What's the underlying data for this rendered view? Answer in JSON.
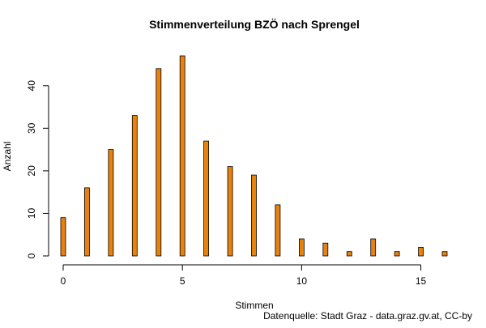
{
  "chart_data": {
    "type": "bar",
    "title": "Stimmenverteilung BZÖ nach Sprengel",
    "xlabel": "Stimmen",
    "ylabel": "Anzahl",
    "caption": "Datenquelle: Stadt Graz - data.graz.gv.at, CC-by",
    "x": [
      0,
      1,
      2,
      3,
      4,
      5,
      6,
      7,
      8,
      9,
      10,
      11,
      12,
      13,
      14,
      15,
      16
    ],
    "values": [
      9,
      16,
      25,
      33,
      44,
      47,
      27,
      21,
      19,
      12,
      4,
      3,
      1,
      4,
      1,
      2,
      1
    ],
    "xlim": [
      0,
      16
    ],
    "ylim": [
      0,
      47
    ],
    "xticks": [
      "0",
      "5",
      "10",
      "15"
    ],
    "yticks": [
      "0",
      "10",
      "20",
      "30",
      "40"
    ],
    "grid": false,
    "bar_color": "#E8820C",
    "bar_border_color": "#000000"
  }
}
